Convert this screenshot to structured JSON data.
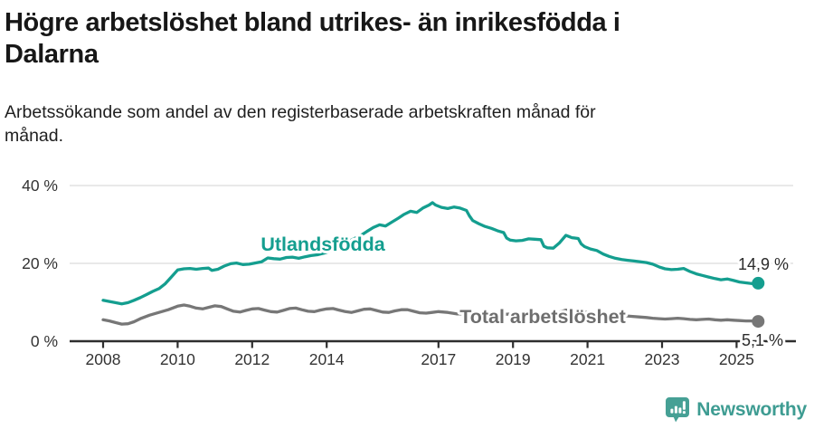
{
  "header": {
    "title_lines": [
      "Högre arbetslöshet bland utrikes- än inrikesfödda i",
      "Dalarna"
    ],
    "subtitle_lines": [
      "Arbetssökande som andel av den registerbaserade arbetskraften månad för",
      "månad."
    ]
  },
  "footer": {
    "brand": "Newsworthy"
  },
  "colors": {
    "teal": "#149e8f",
    "gray_line": "#777777",
    "gray_label": "#6e6e6e",
    "axis": "#2e2e2e",
    "gridline": "#dcdcdc",
    "tick_text": "#333333",
    "value_text": "#2b2b2b",
    "logo_teal": "#46a095"
  },
  "chart_data": {
    "type": "line",
    "title": "Högre arbetslöshet bland utrikes- än inrikesfödda i Dalarna",
    "subtitle": "Arbetssökande som andel av den registerbaserade arbetskraften månad för månad.",
    "xlabel": "",
    "ylabel": "",
    "ylim": [
      0,
      42
    ],
    "xlim": [
      2007.1,
      2026.5
    ],
    "grid": "horizontal-only",
    "legend_position": "inline-labels",
    "yticks": [
      {
        "value": 0,
        "label": "0 %"
      },
      {
        "value": 20,
        "label": "20 %"
      },
      {
        "value": 40,
        "label": "40 %"
      }
    ],
    "xticks": [
      {
        "value": 2008,
        "label": "2008"
      },
      {
        "value": 2010,
        "label": "2010"
      },
      {
        "value": 2012,
        "label": "2012"
      },
      {
        "value": 2014,
        "label": "2014"
      },
      {
        "value": 2017,
        "label": "2017"
      },
      {
        "value": 2019,
        "label": "2019"
      },
      {
        "value": 2021,
        "label": "2021"
      },
      {
        "value": 2023,
        "label": "2023"
      },
      {
        "value": 2025,
        "label": "2025"
      }
    ],
    "series": [
      {
        "name": "Utlandsfödda",
        "color": "#149e8f",
        "end_value": 14.9,
        "end_label": "14,9 %",
        "points": [
          [
            2008.0,
            10.5
          ],
          [
            2008.17,
            10.2
          ],
          [
            2008.33,
            9.9
          ],
          [
            2008.5,
            9.6
          ],
          [
            2008.67,
            9.9
          ],
          [
            2008.83,
            10.5
          ],
          [
            2009.0,
            11.2
          ],
          [
            2009.17,
            12.0
          ],
          [
            2009.33,
            12.8
          ],
          [
            2009.5,
            13.5
          ],
          [
            2009.67,
            14.8
          ],
          [
            2009.83,
            16.5
          ],
          [
            2010.0,
            18.3
          ],
          [
            2010.17,
            18.6
          ],
          [
            2010.33,
            18.7
          ],
          [
            2010.5,
            18.5
          ],
          [
            2010.67,
            18.7
          ],
          [
            2010.83,
            18.8
          ],
          [
            2010.92,
            18.2
          ],
          [
            2011.08,
            18.5
          ],
          [
            2011.25,
            19.3
          ],
          [
            2011.42,
            19.9
          ],
          [
            2011.58,
            20.1
          ],
          [
            2011.75,
            19.7
          ],
          [
            2011.92,
            19.8
          ],
          [
            2012.08,
            20.1
          ],
          [
            2012.25,
            20.4
          ],
          [
            2012.42,
            21.4
          ],
          [
            2012.58,
            21.2
          ],
          [
            2012.75,
            21.1
          ],
          [
            2012.92,
            21.5
          ],
          [
            2013.08,
            21.6
          ],
          [
            2013.25,
            21.3
          ],
          [
            2013.42,
            21.7
          ],
          [
            2013.58,
            22.0
          ],
          [
            2013.75,
            22.2
          ],
          [
            2013.92,
            22.6
          ],
          [
            2014.08,
            23.1
          ],
          [
            2014.25,
            23.9
          ],
          [
            2014.42,
            24.8
          ],
          [
            2014.58,
            25.6
          ],
          [
            2014.75,
            26.4
          ],
          [
            2014.92,
            27.2
          ],
          [
            2015.08,
            28.2
          ],
          [
            2015.25,
            29.2
          ],
          [
            2015.42,
            29.9
          ],
          [
            2015.58,
            29.6
          ],
          [
            2015.75,
            30.6
          ],
          [
            2015.92,
            31.6
          ],
          [
            2016.08,
            32.6
          ],
          [
            2016.25,
            33.4
          ],
          [
            2016.42,
            33.1
          ],
          [
            2016.58,
            34.2
          ],
          [
            2016.75,
            35.0
          ],
          [
            2016.84,
            35.6
          ],
          [
            2016.92,
            35.0
          ],
          [
            2017.08,
            34.4
          ],
          [
            2017.25,
            34.1
          ],
          [
            2017.42,
            34.5
          ],
          [
            2017.58,
            34.2
          ],
          [
            2017.75,
            33.6
          ],
          [
            2017.83,
            32.2
          ],
          [
            2017.92,
            31.0
          ],
          [
            2018.08,
            30.2
          ],
          [
            2018.25,
            29.5
          ],
          [
            2018.42,
            29.0
          ],
          [
            2018.58,
            28.4
          ],
          [
            2018.75,
            27.9
          ],
          [
            2018.83,
            26.5
          ],
          [
            2018.92,
            26.0
          ],
          [
            2019.08,
            25.8
          ],
          [
            2019.25,
            25.9
          ],
          [
            2019.42,
            26.3
          ],
          [
            2019.58,
            26.2
          ],
          [
            2019.75,
            26.1
          ],
          [
            2019.83,
            24.4
          ],
          [
            2019.92,
            24.0
          ],
          [
            2020.08,
            23.9
          ],
          [
            2020.25,
            25.3
          ],
          [
            2020.42,
            27.2
          ],
          [
            2020.5,
            26.9
          ],
          [
            2020.58,
            26.6
          ],
          [
            2020.75,
            26.4
          ],
          [
            2020.83,
            25.0
          ],
          [
            2020.92,
            24.3
          ],
          [
            2021.08,
            23.7
          ],
          [
            2021.25,
            23.3
          ],
          [
            2021.42,
            22.4
          ],
          [
            2021.58,
            21.8
          ],
          [
            2021.75,
            21.3
          ],
          [
            2021.92,
            21.0
          ],
          [
            2022.08,
            20.8
          ],
          [
            2022.25,
            20.6
          ],
          [
            2022.42,
            20.4
          ],
          [
            2022.58,
            20.2
          ],
          [
            2022.75,
            19.8
          ],
          [
            2022.92,
            19.1
          ],
          [
            2023.08,
            18.6
          ],
          [
            2023.25,
            18.4
          ],
          [
            2023.42,
            18.5
          ],
          [
            2023.58,
            18.7
          ],
          [
            2023.75,
            17.9
          ],
          [
            2023.92,
            17.3
          ],
          [
            2024.08,
            16.9
          ],
          [
            2024.25,
            16.5
          ],
          [
            2024.42,
            16.1
          ],
          [
            2024.58,
            15.8
          ],
          [
            2024.75,
            16.0
          ],
          [
            2024.92,
            15.6
          ],
          [
            2025.08,
            15.2
          ],
          [
            2025.25,
            15.0
          ],
          [
            2025.42,
            14.8
          ],
          [
            2025.58,
            14.9
          ]
        ]
      },
      {
        "name": "Total arbetslöshet",
        "color": "#777777",
        "end_value": 5.1,
        "end_label": "5,1 %",
        "points": [
          [
            2008.0,
            5.5
          ],
          [
            2008.17,
            5.2
          ],
          [
            2008.33,
            4.8
          ],
          [
            2008.5,
            4.4
          ],
          [
            2008.67,
            4.5
          ],
          [
            2008.83,
            5.0
          ],
          [
            2009.0,
            5.8
          ],
          [
            2009.25,
            6.7
          ],
          [
            2009.5,
            7.4
          ],
          [
            2009.75,
            8.1
          ],
          [
            2010.0,
            9.0
          ],
          [
            2010.17,
            9.3
          ],
          [
            2010.33,
            9.0
          ],
          [
            2010.5,
            8.5
          ],
          [
            2010.67,
            8.3
          ],
          [
            2010.83,
            8.7
          ],
          [
            2011.0,
            9.1
          ],
          [
            2011.17,
            8.9
          ],
          [
            2011.33,
            8.3
          ],
          [
            2011.5,
            7.7
          ],
          [
            2011.67,
            7.5
          ],
          [
            2011.83,
            7.9
          ],
          [
            2012.0,
            8.3
          ],
          [
            2012.17,
            8.4
          ],
          [
            2012.33,
            8.0
          ],
          [
            2012.5,
            7.6
          ],
          [
            2012.67,
            7.5
          ],
          [
            2012.83,
            7.9
          ],
          [
            2013.0,
            8.4
          ],
          [
            2013.17,
            8.5
          ],
          [
            2013.33,
            8.1
          ],
          [
            2013.5,
            7.7
          ],
          [
            2013.67,
            7.6
          ],
          [
            2013.83,
            8.0
          ],
          [
            2014.0,
            8.3
          ],
          [
            2014.17,
            8.4
          ],
          [
            2014.33,
            8.0
          ],
          [
            2014.5,
            7.6
          ],
          [
            2014.67,
            7.4
          ],
          [
            2014.83,
            7.8
          ],
          [
            2015.0,
            8.2
          ],
          [
            2015.17,
            8.3
          ],
          [
            2015.33,
            7.9
          ],
          [
            2015.5,
            7.5
          ],
          [
            2015.67,
            7.4
          ],
          [
            2015.83,
            7.8
          ],
          [
            2016.0,
            8.1
          ],
          [
            2016.17,
            8.1
          ],
          [
            2016.33,
            7.7
          ],
          [
            2016.5,
            7.3
          ],
          [
            2016.67,
            7.2
          ],
          [
            2016.83,
            7.4
          ],
          [
            2017.0,
            7.6
          ],
          [
            2017.25,
            7.4
          ],
          [
            2017.5,
            7.0
          ],
          [
            2017.75,
            7.1
          ],
          [
            2018.0,
            7.3
          ],
          [
            2018.25,
            7.1
          ],
          [
            2018.5,
            6.8
          ],
          [
            2018.75,
            6.9
          ],
          [
            2019.0,
            7.0
          ],
          [
            2019.25,
            6.8
          ],
          [
            2019.5,
            6.5
          ],
          [
            2019.75,
            6.6
          ],
          [
            2020.0,
            6.8
          ],
          [
            2020.25,
            7.5
          ],
          [
            2020.42,
            8.0
          ],
          [
            2020.67,
            7.8
          ],
          [
            2020.92,
            7.5
          ],
          [
            2021.17,
            7.2
          ],
          [
            2021.42,
            6.9
          ],
          [
            2021.67,
            6.7
          ],
          [
            2021.92,
            6.6
          ],
          [
            2022.17,
            6.4
          ],
          [
            2022.42,
            6.2
          ],
          [
            2022.58,
            6.1
          ],
          [
            2022.75,
            5.9
          ],
          [
            2022.92,
            5.8
          ],
          [
            2023.08,
            5.7
          ],
          [
            2023.25,
            5.8
          ],
          [
            2023.42,
            5.9
          ],
          [
            2023.58,
            5.8
          ],
          [
            2023.75,
            5.6
          ],
          [
            2023.92,
            5.5
          ],
          [
            2024.08,
            5.6
          ],
          [
            2024.25,
            5.7
          ],
          [
            2024.42,
            5.5
          ],
          [
            2024.58,
            5.4
          ],
          [
            2024.75,
            5.5
          ],
          [
            2024.92,
            5.4
          ],
          [
            2025.08,
            5.3
          ],
          [
            2025.25,
            5.2
          ],
          [
            2025.42,
            5.2
          ],
          [
            2025.58,
            5.1
          ]
        ]
      }
    ]
  }
}
